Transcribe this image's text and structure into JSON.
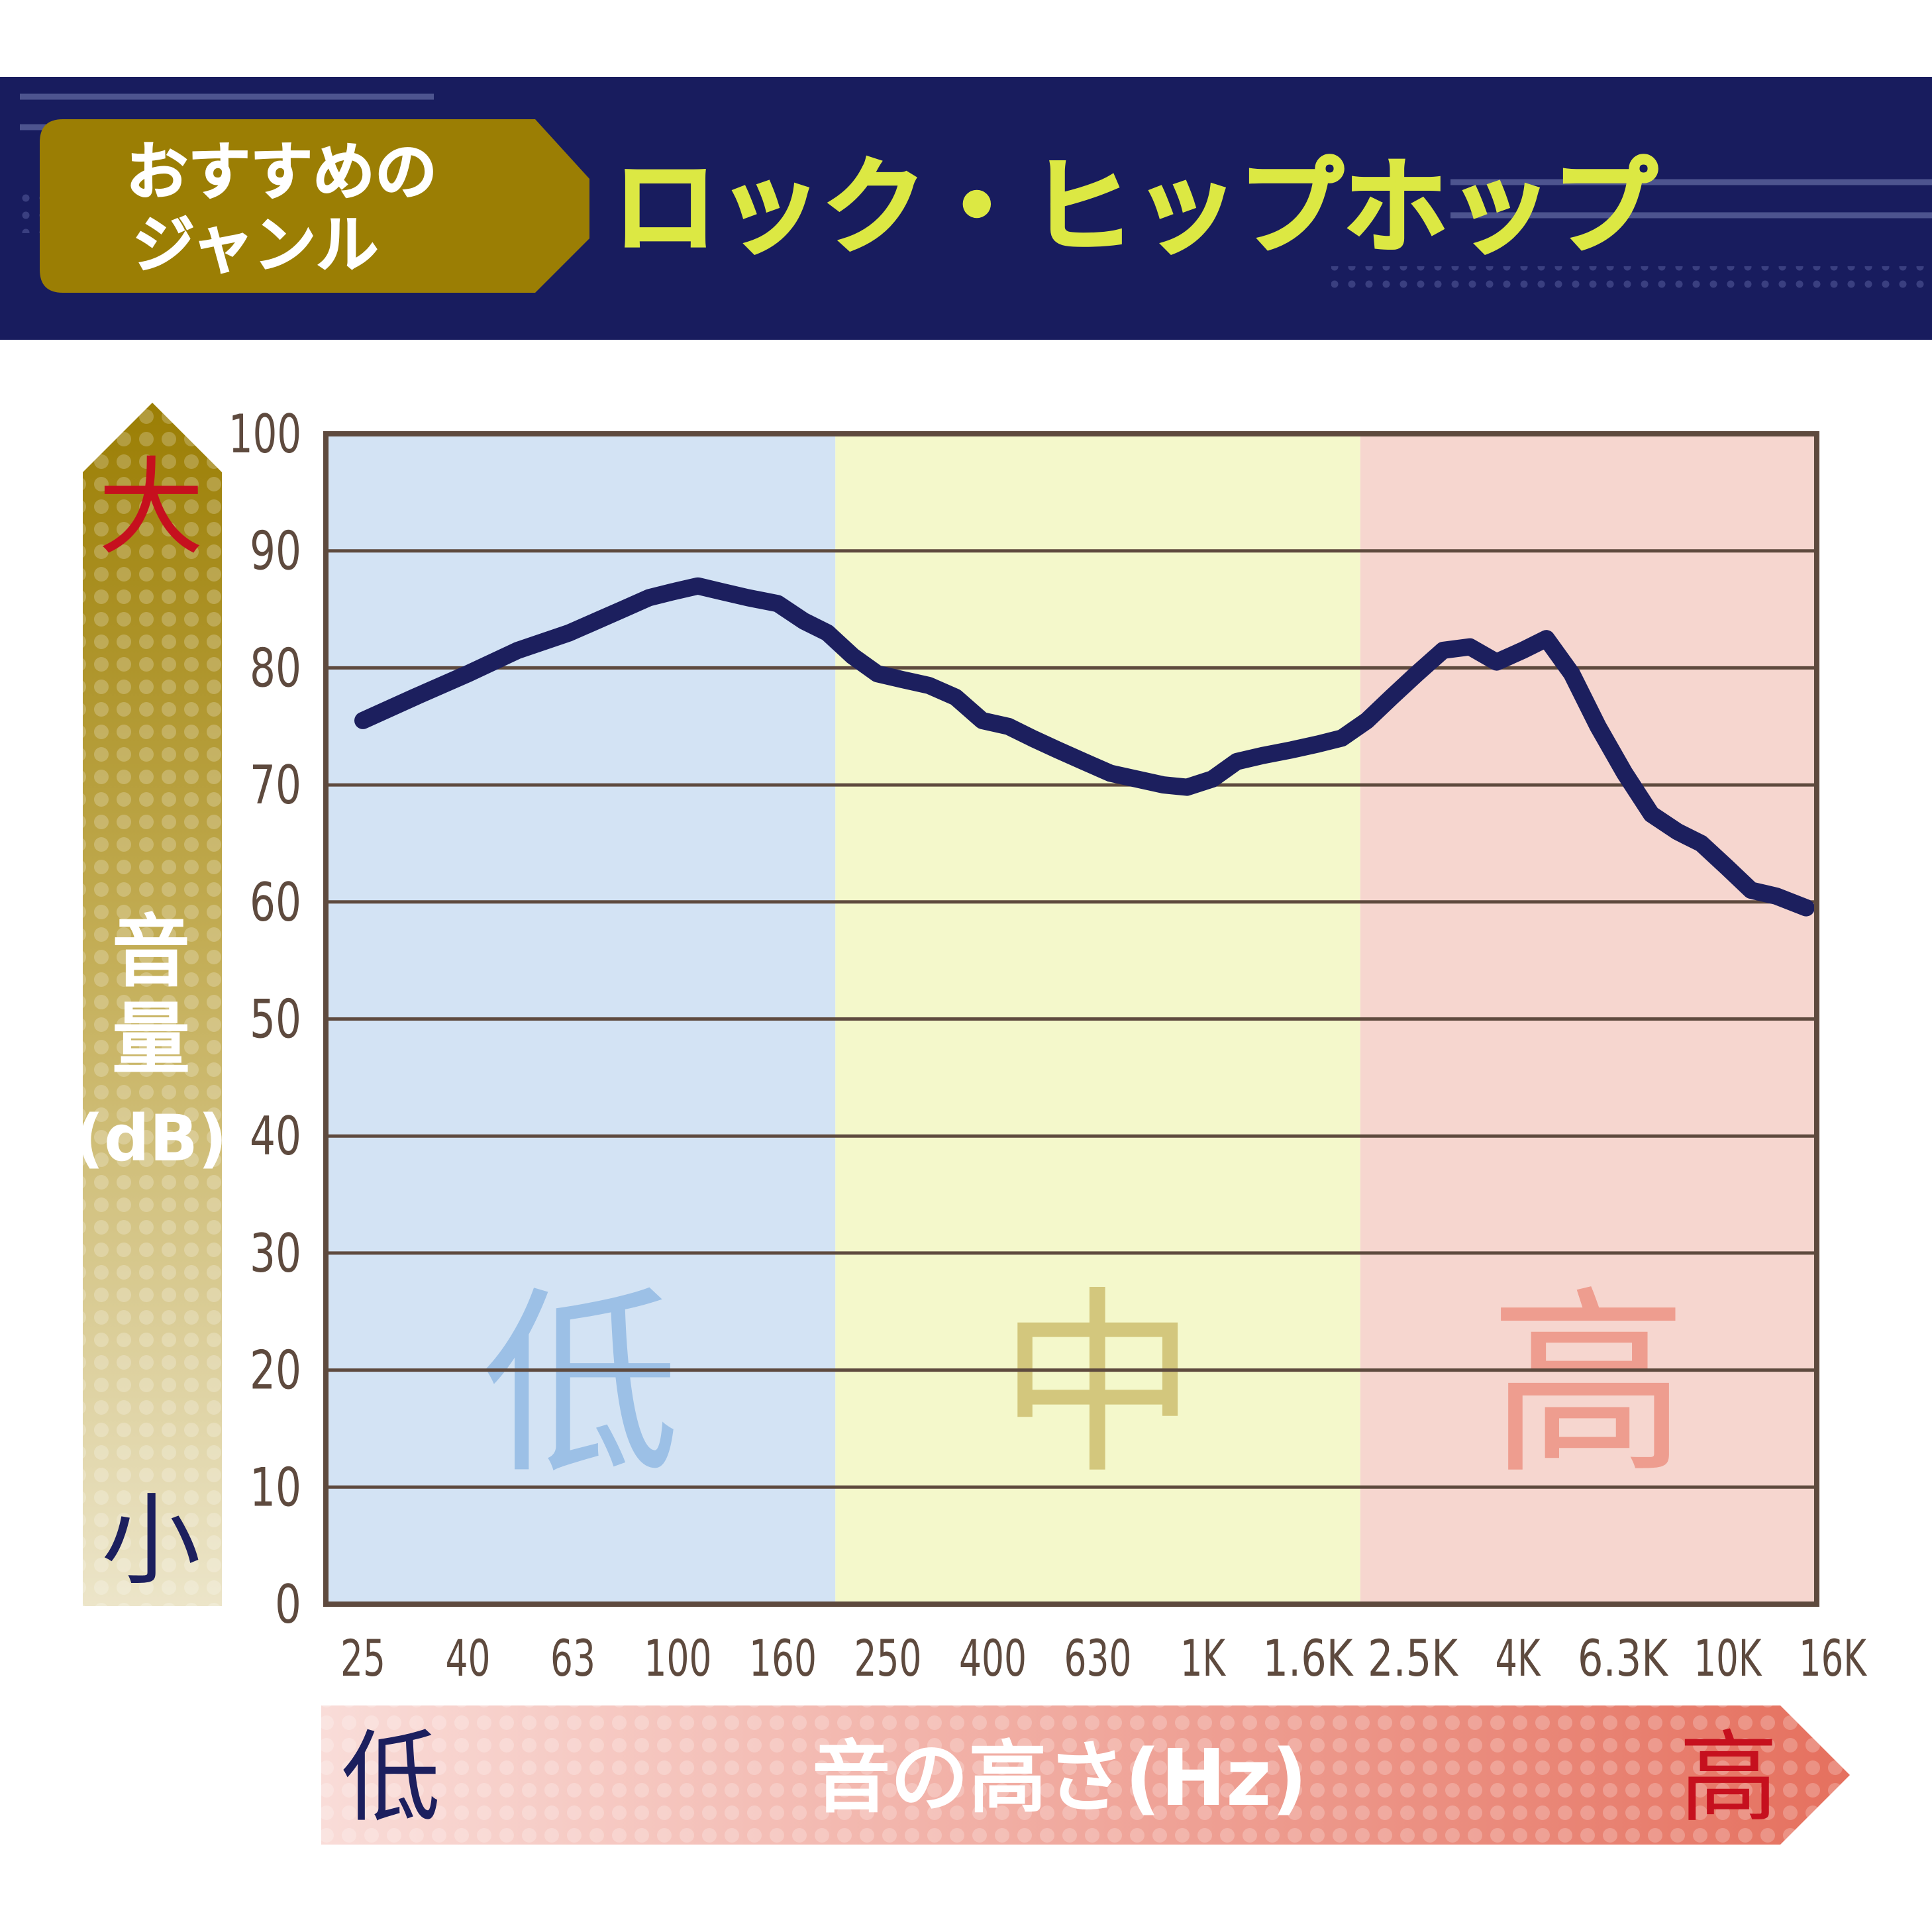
{
  "header": {
    "badge_line1": "おすすめの",
    "badge_line2": "ジャンル",
    "genre_title": "ロック・ヒップホップ"
  },
  "colors": {
    "header_bg": "#181c5e",
    "badge": "#9b7e04",
    "genre_text": "#dce843",
    "low_band": "#d3e3f4",
    "mid_band": "#f4f8cb",
    "high_band": "#f6d6cf",
    "line": "#1c1f5e",
    "axis_text": "#5e4a3e",
    "red": "#c6101e",
    "navy": "#1c1f5e"
  },
  "y_axis": {
    "label_chars": [
      "音",
      "量",
      "(dB)"
    ],
    "high_marker": "大",
    "low_marker": "小"
  },
  "x_axis": {
    "label": "音の高さ(Hz)",
    "low_marker": "低",
    "high_marker": "高"
  },
  "bands": [
    {
      "label": "低",
      "from": "25",
      "to": "250"
    },
    {
      "label": "中",
      "from": "250",
      "to": "2.5K"
    },
    {
      "label": "高",
      "from": "2.5K",
      "to": "16K"
    }
  ],
  "chart_data": {
    "type": "line",
    "title": "ロック・ヒップホップ",
    "xlabel": "音の高さ(Hz)",
    "ylabel": "音量(dB)",
    "ylim": [
      0,
      100
    ],
    "yticks": [
      0,
      10,
      20,
      30,
      40,
      50,
      60,
      70,
      80,
      90,
      100
    ],
    "categories": [
      "25",
      "40",
      "63",
      "100",
      "160",
      "250",
      "400",
      "630",
      "1K",
      "1.6K",
      "2.5K",
      "4K",
      "6.3K",
      "10K",
      "16K"
    ],
    "grid": true,
    "series": [
      {
        "x": [
          25,
          31.5,
          40,
          50,
          63,
          71,
          80,
          90,
          100,
          112,
          125,
          140,
          160,
          180,
          200,
          224,
          250,
          280,
          315,
          355,
          400,
          450,
          500,
          560,
          630,
          710,
          800,
          900,
          1000,
          1120,
          1250,
          1400,
          1600,
          1800,
          2000,
          2240,
          2500,
          2800,
          3150,
          3550,
          4000,
          4500,
          5000,
          5600,
          6300,
          7100,
          8000,
          9000,
          10000,
          11200,
          12500,
          14000,
          16000
        ],
        "y": [
          75.5,
          77.5,
          79.5,
          81.5,
          83,
          84,
          85,
          86,
          86.5,
          87,
          86.5,
          86,
          85.5,
          84,
          83,
          81,
          79.5,
          79,
          78.5,
          77.5,
          75.5,
          75,
          74,
          73,
          72,
          71,
          70.5,
          70,
          69.8,
          70.5,
          72,
          72.5,
          73,
          73.5,
          74,
          75.5,
          77.5,
          79.5,
          81.5,
          81.8,
          80.5,
          81.5,
          82.5,
          79.5,
          75,
          71,
          67.5,
          66,
          65,
          63,
          61,
          60.5,
          59.5
        ]
      }
    ]
  }
}
